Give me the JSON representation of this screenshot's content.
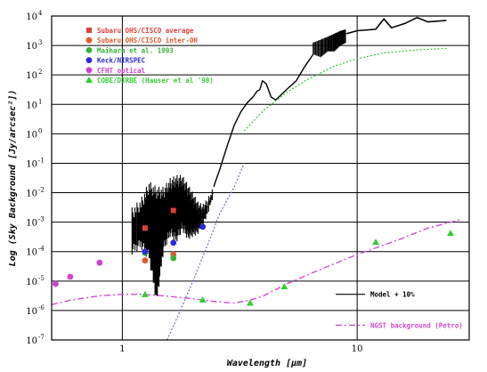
{
  "chart_data": {
    "type": "scatter",
    "title": "",
    "xlabel": "Wavelength [μm]",
    "ylabel": "Log (Sky Background [Jy/arcsec²])",
    "xscale": "log",
    "yscale": "log",
    "xlim": [
      0.5,
      30
    ],
    "ylim": [
      1e-07,
      10000
    ],
    "x_ticks": [
      {
        "value": 1,
        "label": "1"
      },
      {
        "value": 10,
        "label": "10"
      }
    ],
    "y_ticks": [
      {
        "exp": 4,
        "label": "10",
        "sup": "4"
      },
      {
        "exp": 3,
        "label": "10",
        "sup": "3"
      },
      {
        "exp": 2,
        "label": "10",
        "sup": "2"
      },
      {
        "exp": 1,
        "label": "10",
        "sup": "1"
      },
      {
        "exp": 0,
        "label": "10",
        "sup": "0"
      },
      {
        "exp": -1,
        "label": "10",
        "sup": "-1"
      },
      {
        "exp": -2,
        "label": "10",
        "sup": "-2"
      },
      {
        "exp": -3,
        "label": "10",
        "sup": "-3"
      },
      {
        "exp": -4,
        "label": "10",
        "sup": "-4"
      },
      {
        "exp": -5,
        "label": "10",
        "sup": "-5"
      },
      {
        "exp": -6,
        "label": "10",
        "sup": "-6"
      },
      {
        "exp": -7,
        "label": "10",
        "sup": "-7"
      }
    ],
    "grid": true,
    "legend_position": "top-left",
    "series": [
      {
        "name": "Subaru OHS/CISCO average",
        "color": "#e0403a",
        "marker": "square",
        "points": [
          [
            1.25,
            0.00063
          ],
          [
            1.65,
            0.0025
          ]
        ]
      },
      {
        "name": "Subaru OHS/CISCO inter-OH",
        "color": "#e05a2a",
        "marker": "circle",
        "points": [
          [
            1.25,
            5e-05
          ],
          [
            1.65,
            8e-05
          ]
        ]
      },
      {
        "name": "Maihara et al. 1993",
        "color": "#33b333",
        "marker": "circle",
        "points": [
          [
            1.65,
            6e-05
          ],
          [
            1.25,
            9e-05
          ]
        ]
      },
      {
        "name": "Keck/NIRSPEC",
        "color": "#2a2ad8",
        "marker": "circle",
        "points": [
          [
            1.25,
            0.0001
          ],
          [
            1.65,
            0.0002
          ],
          [
            2.2,
            0.0007
          ]
        ]
      },
      {
        "name": "CFHT optical",
        "color": "#d040d0",
        "marker": "circle",
        "points": [
          [
            0.52,
            8e-06
          ],
          [
            0.6,
            1.4e-05
          ],
          [
            0.8,
            4.2e-05
          ]
        ]
      },
      {
        "name": "COBE/DIRBE (Hauser et al '98)",
        "color": "#33cc33",
        "marker": "triangle",
        "points": [
          [
            1.25,
            3.5e-06
          ],
          [
            2.2,
            2.3e-06
          ],
          [
            3.5,
            1.8e-06
          ],
          [
            4.9,
            6.5e-06
          ],
          [
            12,
            0.00021
          ],
          [
            25,
            0.00042
          ]
        ]
      }
    ],
    "lines": [
      {
        "name": "Model + 10%",
        "color": "#000000",
        "style": "solid"
      },
      {
        "name": "NGST background (Petro)",
        "color": "#d24bd2",
        "style": "dashdot"
      },
      {
        "name": "",
        "color": "#33c033",
        "style": "dotted"
      },
      {
        "name": "",
        "color": "#6a6ad8",
        "style": "dotted"
      }
    ],
    "curves": {
      "model_envelope": [
        [
          1.1,
          -4.1,
          -2.5
        ],
        [
          1.2,
          -3.9,
          -2.2
        ],
        [
          1.3,
          -4.3,
          -1.6
        ],
        [
          1.4,
          -5.8,
          -1.8
        ],
        [
          1.5,
          -4.0,
          -1.8
        ],
        [
          1.6,
          -3.5,
          -1.5
        ],
        [
          1.7,
          -3.7,
          -1.4
        ],
        [
          1.8,
          -3.3,
          -1.4
        ],
        [
          1.9,
          -3.6,
          -1.7
        ],
        [
          2.0,
          -3.5,
          -2.0
        ],
        [
          2.1,
          -3.4,
          -2.3
        ],
        [
          2.2,
          -3.1,
          -2.4
        ],
        [
          2.3,
          -2.8,
          -2.2
        ],
        [
          2.45,
          -2.1,
          -1.8
        ]
      ],
      "model_line": [
        [
          2.45,
          -1.8
        ],
        [
          2.6,
          -1.2
        ],
        [
          2.8,
          -0.4
        ],
        [
          3.0,
          0.3
        ],
        [
          3.2,
          0.75
        ],
        [
          3.4,
          1.05
        ],
        [
          3.6,
          1.25
        ],
        [
          3.75,
          1.45
        ],
        [
          3.85,
          1.5
        ],
        [
          3.95,
          1.8
        ],
        [
          4.1,
          1.7
        ],
        [
          4.3,
          1.25
        ],
        [
          4.5,
          1.15
        ],
        [
          5.0,
          1.5
        ],
        [
          5.5,
          1.8
        ],
        [
          6.0,
          2.3
        ],
        [
          6.5,
          2.7
        ]
      ],
      "model_band_high": [
        [
          6.5,
          2.7,
          3.1
        ],
        [
          7.0,
          2.6,
          3.2
        ],
        [
          7.5,
          2.8,
          3.3
        ],
        [
          8.0,
          2.8,
          3.4
        ],
        [
          8.5,
          3.0,
          3.5
        ],
        [
          9.0,
          3.1,
          3.55
        ]
      ],
      "model_upper": [
        [
          9.0,
          3.4
        ],
        [
          10,
          3.5
        ],
        [
          12,
          3.55
        ],
        [
          13,
          3.9
        ],
        [
          14,
          3.6
        ],
        [
          16,
          3.75
        ],
        [
          18,
          3.95
        ],
        [
          20,
          3.8
        ],
        [
          24,
          3.85
        ]
      ],
      "ngst": [
        [
          0.5,
          -5.8
        ],
        [
          0.6,
          -5.65
        ],
        [
          0.8,
          -5.5
        ],
        [
          1.0,
          -5.45
        ],
        [
          1.2,
          -5.45
        ],
        [
          1.5,
          -5.5
        ],
        [
          2.0,
          -5.6
        ],
        [
          2.5,
          -5.7
        ],
        [
          3.0,
          -5.75
        ],
        [
          3.5,
          -5.65
        ],
        [
          4.0,
          -5.5
        ],
        [
          5.0,
          -5.1
        ],
        [
          7.0,
          -4.6
        ],
        [
          10,
          -4.1
        ],
        [
          15,
          -3.6
        ],
        [
          20,
          -3.2
        ],
        [
          28,
          -2.9
        ]
      ],
      "green_dotted": [
        [
          3.3,
          0.1
        ],
        [
          4.0,
          0.8
        ],
        [
          5.0,
          1.4
        ],
        [
          6.0,
          1.8
        ],
        [
          8.0,
          2.3
        ],
        [
          10,
          2.55
        ],
        [
          13,
          2.75
        ],
        [
          18,
          2.85
        ],
        [
          24,
          2.9
        ]
      ],
      "blue_dotted": [
        [
          1.55,
          -7.0
        ],
        [
          1.7,
          -6.3
        ],
        [
          2.0,
          -5.0
        ],
        [
          2.3,
          -3.8
        ],
        [
          2.6,
          -2.7
        ],
        [
          3.0,
          -1.8
        ],
        [
          3.3,
          -1.0
        ]
      ]
    }
  }
}
